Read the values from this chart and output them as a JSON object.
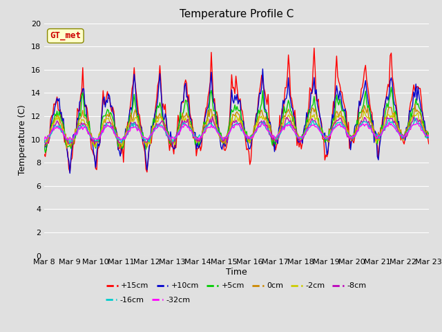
{
  "title": "Temperature Profile C",
  "xlabel": "Time",
  "ylabel": "Temperature (C)",
  "ylim": [
    0,
    20
  ],
  "yticks": [
    0,
    2,
    4,
    6,
    8,
    10,
    12,
    14,
    16,
    18,
    20
  ],
  "x_labels": [
    "Mar 8",
    "Mar 9",
    "Mar 10",
    "Mar 11",
    "Mar 12",
    "Mar 13",
    "Mar 14",
    "Mar 15",
    "Mar 16",
    "Mar 17",
    "Mar 18",
    "Mar 19",
    "Mar 20",
    "Mar 21",
    "Mar 22",
    "Mar 23"
  ],
  "series_order": [
    "+15cm",
    "+10cm",
    "+5cm",
    "0cm",
    "-2cm",
    "-8cm",
    "-16cm",
    "-32cm"
  ],
  "series": {
    "+15cm": {
      "color": "#ff0000",
      "lw": 1.0
    },
    "+10cm": {
      "color": "#0000cc",
      "lw": 1.0
    },
    "+5cm": {
      "color": "#00cc00",
      "lw": 1.0
    },
    "0cm": {
      "color": "#cc8800",
      "lw": 1.0
    },
    "-2cm": {
      "color": "#cccc00",
      "lw": 1.0
    },
    "-8cm": {
      "color": "#bb00bb",
      "lw": 1.0
    },
    "-16cm": {
      "color": "#00cccc",
      "lw": 1.0
    },
    "-32cm": {
      "color": "#ff00ff",
      "lw": 1.0
    }
  },
  "legend_label": "GT_met",
  "legend_box_facecolor": "#ffffcc",
  "legend_box_edgecolor": "#888800",
  "legend_text_color": "#cc0000",
  "bg_color": "#e0e0e0",
  "grid_color": "#ffffff",
  "n_days": 15,
  "pts_per_day": 24,
  "seed": 42
}
